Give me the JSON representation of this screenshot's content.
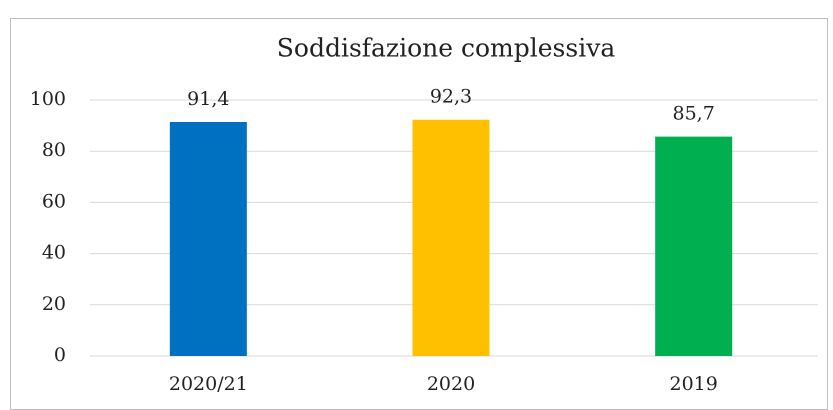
{
  "chart_data": {
    "type": "bar",
    "title": "Soddisfazione complessiva",
    "categories": [
      "2020/21",
      "2020",
      "2019"
    ],
    "values": [
      91.4,
      92.3,
      85.7
    ],
    "value_labels": [
      "91,4",
      "92,3",
      "85,7"
    ],
    "colors": [
      "#0070c0",
      "#ffc000",
      "#00b050"
    ],
    "ylim": [
      0,
      100
    ],
    "yticks": [
      0,
      20,
      40,
      60,
      80,
      100
    ],
    "grid": true
  }
}
